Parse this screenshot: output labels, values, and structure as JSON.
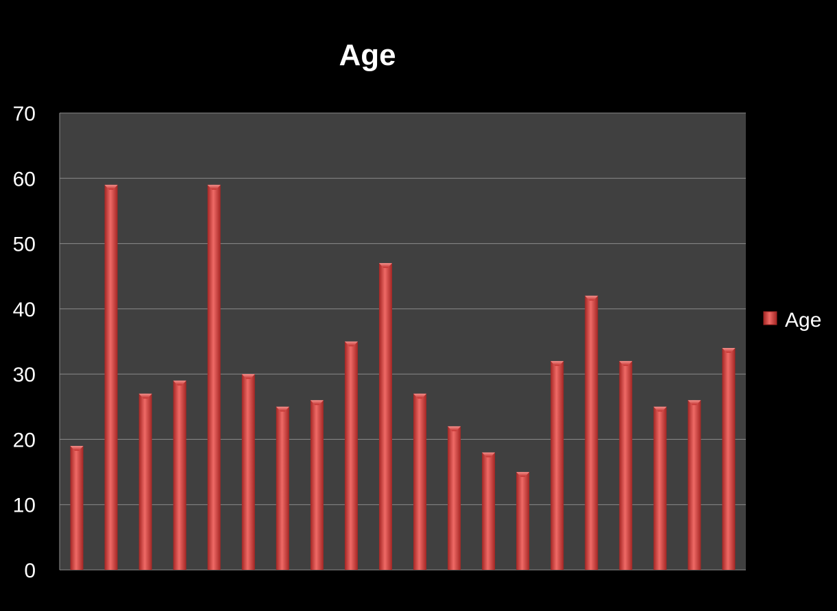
{
  "colors": {
    "background": "#000000",
    "plot_area": "#404040",
    "gridline": "#8c8c8c",
    "bar": "#d63a38",
    "bar_light": "#ef6a66",
    "bar_dark": "#a42624",
    "text": "#ffffff"
  },
  "chart_data": {
    "type": "bar",
    "title": "Age",
    "xlabel": "",
    "ylabel": "",
    "ylim": [
      0,
      70
    ],
    "yticks": [
      0,
      10,
      20,
      30,
      40,
      50,
      60,
      70
    ],
    "grid": true,
    "legend_position": "right",
    "series": [
      {
        "name": "Age",
        "values": [
          19,
          59,
          27,
          29,
          59,
          30,
          25,
          26,
          35,
          47,
          27,
          22,
          18,
          15,
          32,
          42,
          32,
          25,
          26,
          34
        ]
      }
    ]
  }
}
